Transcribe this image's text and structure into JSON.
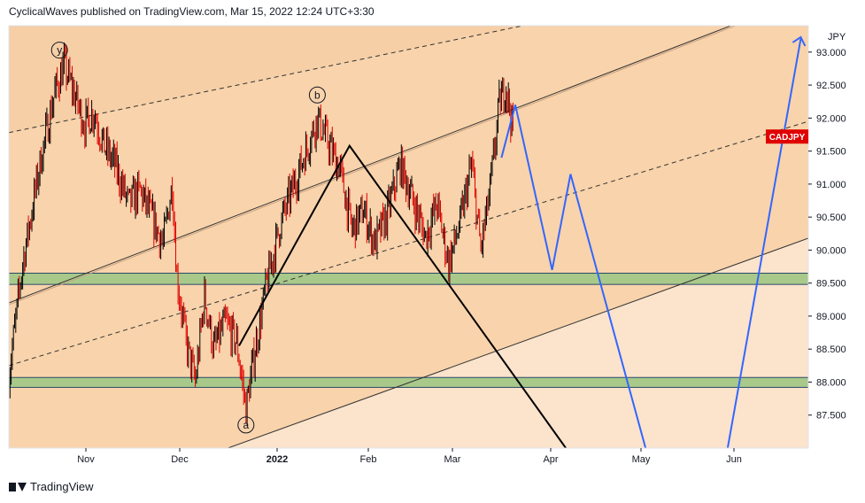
{
  "header": {
    "publisher_text": "CyclicalWaves published on TradingView.com, Mar 15, 2022 12:24 UTC+3:30"
  },
  "footer": {
    "brand": "TradingView"
  },
  "colors": {
    "candle_up": "#000000",
    "candle_down": "#e00000",
    "zone_fill": "#a8c98a",
    "channel_fill": "#f8d3ab",
    "lower_fill": "#fbe3cc",
    "projection": "#3366ff",
    "label_bg": "#e00000"
  },
  "chart_data": {
    "type": "candlestick",
    "symbol_label": "CADJPY",
    "currency": "JPY",
    "last_price": 91.72,
    "x_ticks": [
      "Nov",
      "Dec",
      "2022",
      "Feb",
      "Mar",
      "Apr",
      "May",
      "Jun"
    ],
    "y_ticks": [
      "87.500",
      "88.000",
      "88.500",
      "89.000",
      "89.500",
      "90.000",
      "90.500",
      "91.000",
      "91.500",
      "92.000",
      "92.500",
      "93.000"
    ],
    "ylim": [
      87.0,
      93.4
    ],
    "price_path": [
      {
        "t": 0,
        "p": 88.1
      },
      {
        "t": 6,
        "p": 89.8
      },
      {
        "t": 14,
        "p": 91.4
      },
      {
        "t": 20,
        "p": 92.4
      },
      {
        "t": 24,
        "p": 92.8
      },
      {
        "t": 29,
        "p": 92.3
      },
      {
        "t": 33,
        "p": 91.9
      },
      {
        "t": 37,
        "p": 92.1
      },
      {
        "t": 41,
        "p": 91.6
      },
      {
        "t": 46,
        "p": 91.3
      },
      {
        "t": 52,
        "p": 90.7
      },
      {
        "t": 57,
        "p": 90.9
      },
      {
        "t": 62,
        "p": 90.5
      },
      {
        "t": 67,
        "p": 90.1
      },
      {
        "t": 71,
        "p": 91.0
      },
      {
        "t": 73,
        "p": 89.6
      },
      {
        "t": 77,
        "p": 88.6
      },
      {
        "t": 81,
        "p": 88.0
      },
      {
        "t": 85,
        "p": 89.3
      },
      {
        "t": 89,
        "p": 88.5
      },
      {
        "t": 94,
        "p": 88.9
      },
      {
        "t": 99,
        "p": 88.6
      },
      {
        "t": 103,
        "p": 87.6
      },
      {
        "t": 107,
        "p": 88.5
      },
      {
        "t": 112,
        "p": 89.5
      },
      {
        "t": 118,
        "p": 90.4
      },
      {
        "t": 124,
        "p": 91.0
      },
      {
        "t": 129,
        "p": 91.5
      },
      {
        "t": 134,
        "p": 92.0
      },
      {
        "t": 139,
        "p": 91.6
      },
      {
        "t": 144,
        "p": 91.2
      },
      {
        "t": 149,
        "p": 90.3
      },
      {
        "t": 154,
        "p": 90.6
      },
      {
        "t": 159,
        "p": 90.1
      },
      {
        "t": 164,
        "p": 90.5
      },
      {
        "t": 170,
        "p": 91.3
      },
      {
        "t": 175,
        "p": 90.8
      },
      {
        "t": 181,
        "p": 90.2
      },
      {
        "t": 186,
        "p": 90.7
      },
      {
        "t": 191,
        "p": 89.8
      },
      {
        "t": 196,
        "p": 90.4
      },
      {
        "t": 201,
        "p": 91.3
      },
      {
        "t": 205,
        "p": 90.0
      },
      {
        "t": 209,
        "p": 90.9
      },
      {
        "t": 213,
        "p": 92.2
      },
      {
        "t": 216,
        "p": 92.5
      },
      {
        "t": 219,
        "p": 91.8
      }
    ],
    "zones": [
      {
        "from": 89.48,
        "to": 89.65
      },
      {
        "from": 87.92,
        "to": 88.07
      }
    ],
    "wave_labels": [
      {
        "text": "y",
        "t": 22,
        "p": 93.03
      },
      {
        "text": "b",
        "t": 134,
        "p": 92.35
      },
      {
        "text": "a",
        "t": 103,
        "p": 87.35
      }
    ],
    "wave_lines": [
      [
        {
          "t": 100,
          "p": 88.55
        },
        {
          "t": 148,
          "p": 91.58
        },
        {
          "t": 243,
          "p": 86.95
        }
      ]
    ],
    "projection_path": [
      {
        "t": 214,
        "p": 91.4
      },
      {
        "t": 220,
        "p": 92.2
      },
      {
        "t": 236,
        "p": 89.7
      },
      {
        "t": 244,
        "p": 91.15
      },
      {
        "t": 277,
        "p": 86.95
      },
      {
        "t": 312,
        "p": 86.95
      },
      {
        "t": 344,
        "p": 93.2
      }
    ],
    "arrow_end": {
      "t": 348,
      "p": 93.1
    }
  }
}
